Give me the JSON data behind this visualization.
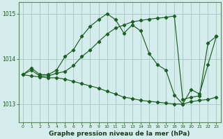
{
  "title": "Graphe pression niveau de la mer (hPa)",
  "background_color": "#d4ecec",
  "grid_color": "#aacccc",
  "line_color": "#1a6020",
  "xlim": [
    -0.5,
    23.5
  ],
  "ylim": [
    1012.6,
    1015.25
  ],
  "yticks": [
    1013,
    1014,
    1015
  ],
  "xticks": [
    0,
    1,
    2,
    3,
    4,
    5,
    6,
    7,
    8,
    9,
    10,
    11,
    12,
    13,
    14,
    15,
    16,
    17,
    18,
    19,
    20,
    21,
    22,
    23
  ],
  "hours": [
    0,
    1,
    2,
    3,
    4,
    5,
    6,
    7,
    8,
    9,
    10,
    11,
    12,
    13,
    14,
    15,
    16,
    17,
    18,
    19,
    20,
    21,
    22,
    23
  ],
  "series_jagged": [
    1013.65,
    1013.8,
    1013.65,
    1013.65,
    1013.75,
    1014.05,
    1014.2,
    1014.5,
    1014.72,
    1014.87,
    1015.0,
    1014.87,
    1014.57,
    1014.75,
    1014.62,
    1014.12,
    1013.87,
    1013.75,
    1013.2,
    1013.0,
    1013.32,
    1013.22,
    1013.87,
    1014.5
  ],
  "series_upper": [
    1013.65,
    1013.75,
    1013.62,
    1013.62,
    1013.68,
    1013.72,
    1013.85,
    1014.05,
    1014.2,
    1014.38,
    1014.55,
    1014.68,
    1014.75,
    1014.82,
    1014.85,
    1014.88,
    1014.9,
    1014.92,
    1014.95,
    1013.1,
    1013.15,
    1013.18,
    1014.35,
    1014.5
  ],
  "series_lower": [
    1013.65,
    1013.62,
    1013.6,
    1013.58,
    1013.58,
    1013.55,
    1013.5,
    1013.45,
    1013.4,
    1013.35,
    1013.28,
    1013.22,
    1013.15,
    1013.12,
    1013.08,
    1013.06,
    1013.04,
    1013.02,
    1013.0,
    1013.0,
    1013.05,
    1013.08,
    1013.1,
    1013.15
  ],
  "ylabel_fontsize": 5.5,
  "tick_fontsize": 5.5,
  "xlabel_fontsize": 6.5
}
